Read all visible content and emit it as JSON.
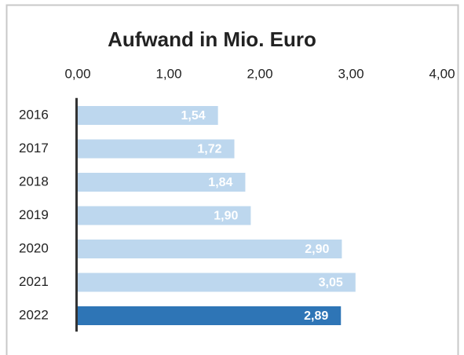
{
  "chart_data": {
    "type": "barh",
    "title": "Aufwand in Mio. Euro",
    "categories": [
      "2016",
      "2017",
      "2018",
      "2019",
      "2020",
      "2021",
      "2022"
    ],
    "values": [
      1.54,
      1.72,
      1.84,
      1.9,
      2.9,
      3.05,
      2.89
    ],
    "value_labels": [
      "1,54",
      "1,72",
      "1,84",
      "1,90",
      "2,90",
      "3,05",
      "2,89"
    ],
    "colors": [
      "#bdd7ee",
      "#bdd7ee",
      "#bdd7ee",
      "#bdd7ee",
      "#bdd7ee",
      "#bdd7ee",
      "#2e75b6"
    ],
    "xlim": [
      0,
      4
    ],
    "xticks": [
      {
        "value": 0,
        "label": "0,00"
      },
      {
        "value": 1,
        "label": "1,00"
      },
      {
        "value": 2,
        "label": "2,00"
      },
      {
        "value": 3,
        "label": "3,00"
      },
      {
        "value": 4,
        "label": "4,00"
      }
    ],
    "grid": false
  }
}
